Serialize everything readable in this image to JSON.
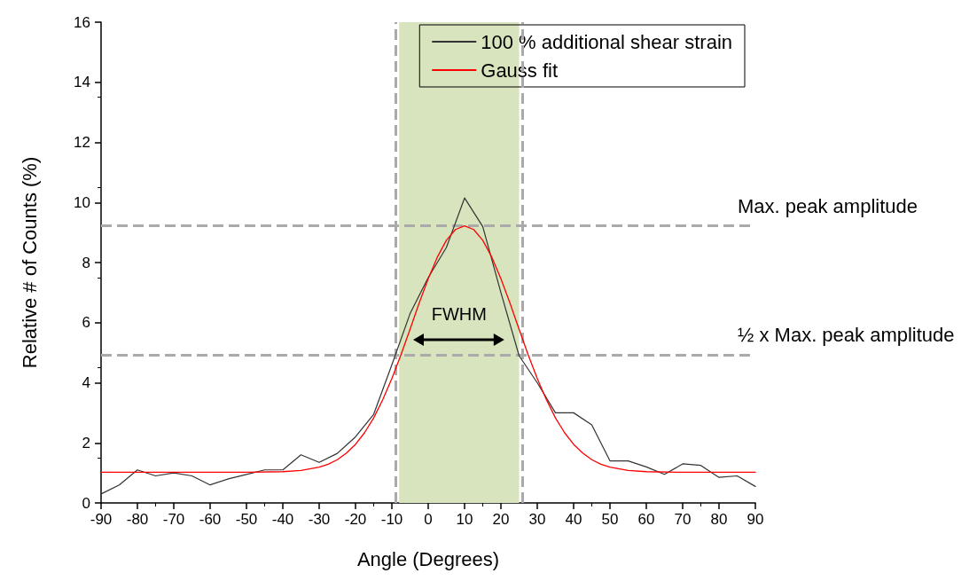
{
  "chart_data": {
    "type": "line",
    "xlabel": "Angle (Degrees)",
    "ylabel": "Relative # of Counts (%)",
    "xlim": [
      -90,
      90
    ],
    "xticks": [
      -90,
      -80,
      -70,
      -60,
      -50,
      -40,
      -30,
      -20,
      -10,
      0,
      10,
      20,
      30,
      40,
      50,
      60,
      70,
      80,
      90
    ],
    "ylim": [
      0,
      16
    ],
    "yticks": [
      0,
      2,
      4,
      6,
      8,
      10,
      12,
      14,
      16
    ],
    "series": [
      {
        "name": "100 % additional shear strain",
        "color": "#333333",
        "x": [
          -90,
          -85,
          -80,
          -75,
          -70,
          -65,
          -60,
          -55,
          -50,
          -45,
          -40,
          -35,
          -30,
          -25,
          -20,
          -15,
          -10,
          -5,
          0,
          5,
          10,
          15,
          20,
          25,
          30,
          35,
          40,
          45,
          50,
          55,
          60,
          65,
          70,
          75,
          80,
          85,
          90
        ],
        "values": [
          0.3,
          0.6,
          1.1,
          0.9,
          1.0,
          0.9,
          0.6,
          0.8,
          0.95,
          1.1,
          1.1,
          1.6,
          1.35,
          1.65,
          2.2,
          2.95,
          4.6,
          6.3,
          7.5,
          8.5,
          10.15,
          9.2,
          7.0,
          4.9,
          4.0,
          3.0,
          3.0,
          2.6,
          1.4,
          1.4,
          1.2,
          0.95,
          1.3,
          1.25,
          0.85,
          0.9,
          0.55
        ]
      },
      {
        "name": "Gauss fit",
        "color": "#ff0000",
        "x": [
          -90,
          -80,
          -70,
          -60,
          -50,
          -40,
          -35,
          -30,
          -27.5,
          -25,
          -22.5,
          -20,
          -17.5,
          -15,
          -12.5,
          -10,
          -7.5,
          -5,
          -2.5,
          0,
          2.5,
          5,
          7.5,
          10,
          12.5,
          15,
          17.5,
          20,
          22.5,
          25,
          27.5,
          30,
          32.5,
          35,
          37.5,
          40,
          42.5,
          45,
          47.5,
          50,
          55,
          60,
          70,
          80,
          90
        ],
        "values": [
          1.02,
          1.02,
          1.02,
          1.02,
          1.02,
          1.04,
          1.08,
          1.19,
          1.29,
          1.44,
          1.66,
          1.95,
          2.34,
          2.83,
          3.44,
          4.14,
          4.93,
          5.78,
          6.65,
          7.46,
          8.18,
          8.74,
          9.1,
          9.22,
          9.1,
          8.74,
          8.18,
          7.46,
          6.65,
          5.78,
          4.93,
          4.14,
          3.44,
          2.83,
          2.34,
          1.95,
          1.66,
          1.44,
          1.29,
          1.19,
          1.08,
          1.04,
          1.02,
          1.02,
          1.02
        ]
      }
    ],
    "ref_lines": [
      {
        "axis": "y",
        "value": 9.23,
        "label": "Max. peak amplitude",
        "color": "#aaaaaa",
        "line_style": "dashed"
      },
      {
        "axis": "y",
        "value": 4.93,
        "label": "½ x Max. peak amplitude",
        "color": "#aaaaaa",
        "line_style": "dashed"
      },
      {
        "axis": "x",
        "value": -9,
        "label": null,
        "color": "#aaaaaa",
        "line_style": "dashed"
      },
      {
        "axis": "x",
        "value": 26,
        "label": null,
        "color": "#aaaaaa",
        "line_style": "dashed"
      }
    ],
    "bands": [
      {
        "axis": "x",
        "from": -8,
        "to": 25,
        "label": "FWHM",
        "color": "#d7e4bd"
      }
    ],
    "legend": "top right",
    "grid": false,
    "marker": "none",
    "line_style": "solid"
  }
}
